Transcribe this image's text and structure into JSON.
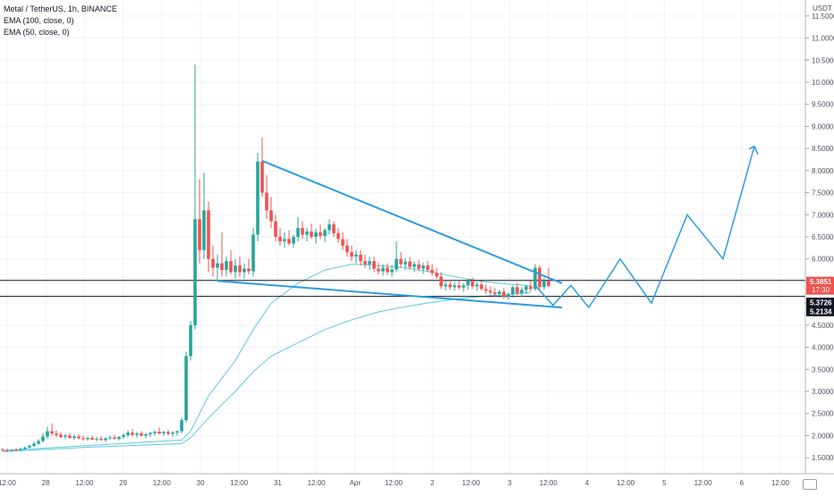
{
  "legend": {
    "symbol": "Metal / TetherUS, 1h, BINANCE",
    "ema100": "EMA (100, close, 0)",
    "ema50": "EMA (50, close, 0)"
  },
  "price_axis": {
    "currency": "USDT",
    "ticks": [
      "11.5000",
      "11.0000",
      "10.5000",
      "10.0000",
      "9.5000",
      "9.0000",
      "8.5000",
      "8.0000",
      "7.5000",
      "7.0000",
      "6.5000",
      "6.0000",
      "5.5000",
      "5.0000",
      "4.5000",
      "4.0000",
      "3.5000",
      "3.0000",
      "2.5000",
      "2.0000",
      "1.5000"
    ],
    "tick_values": [
      11.5,
      11.0,
      10.5,
      10.0,
      9.5,
      9.0,
      8.5,
      8.0,
      7.5,
      7.0,
      6.5,
      6.0,
      5.5,
      5.0,
      4.5,
      4.0,
      3.5,
      3.0,
      2.5,
      2.0,
      1.5
    ],
    "current_price": "5.3851",
    "countdown": "17:30",
    "level_1": "5.3726",
    "level_2": "5.2134"
  },
  "time_axis": {
    "labels": [
      "12:00",
      "28",
      "12:00",
      "29",
      "12:00",
      "30",
      "12:00",
      "31",
      "12:00",
      "Apr",
      "12:00",
      "2",
      "12:00",
      "3",
      "12:00",
      "4",
      "12:00",
      "5",
      "12:00",
      "6",
      "12:00"
    ]
  },
  "colors": {
    "up": "#26a69a",
    "down": "#ef5350",
    "ema": "#5ec8e0",
    "pattern": "#2e9be0",
    "level_line": "#131722"
  },
  "chart_data": {
    "type": "candlestick",
    "title": "Metal / TetherUS, 1h, BINANCE",
    "ylim": [
      1.2,
      11.8
    ],
    "y_scale": "linear",
    "candles": [
      {
        "o": 1.68,
        "h": 1.72,
        "l": 1.64,
        "c": 1.67
      },
      {
        "o": 1.67,
        "h": 1.71,
        "l": 1.63,
        "c": 1.66
      },
      {
        "o": 1.66,
        "h": 1.7,
        "l": 1.63,
        "c": 1.68
      },
      {
        "o": 1.68,
        "h": 1.72,
        "l": 1.65,
        "c": 1.67
      },
      {
        "o": 1.67,
        "h": 1.73,
        "l": 1.65,
        "c": 1.7
      },
      {
        "o": 1.7,
        "h": 1.76,
        "l": 1.68,
        "c": 1.73
      },
      {
        "o": 1.73,
        "h": 1.8,
        "l": 1.71,
        "c": 1.77
      },
      {
        "o": 1.77,
        "h": 1.86,
        "l": 1.74,
        "c": 1.82
      },
      {
        "o": 1.82,
        "h": 1.92,
        "l": 1.79,
        "c": 1.88
      },
      {
        "o": 1.88,
        "h": 2.05,
        "l": 1.84,
        "c": 1.98
      },
      {
        "o": 1.98,
        "h": 2.2,
        "l": 1.93,
        "c": 2.1
      },
      {
        "o": 2.1,
        "h": 2.28,
        "l": 2.0,
        "c": 2.05
      },
      {
        "o": 2.05,
        "h": 2.12,
        "l": 1.96,
        "c": 2.02
      },
      {
        "o": 2.02,
        "h": 2.08,
        "l": 1.94,
        "c": 1.97
      },
      {
        "o": 1.97,
        "h": 2.04,
        "l": 1.92,
        "c": 2.0
      },
      {
        "o": 2.0,
        "h": 2.06,
        "l": 1.93,
        "c": 1.95
      },
      {
        "o": 1.95,
        "h": 2.02,
        "l": 1.9,
        "c": 1.98
      },
      {
        "o": 1.98,
        "h": 2.03,
        "l": 1.92,
        "c": 1.94
      },
      {
        "o": 1.94,
        "h": 2.0,
        "l": 1.89,
        "c": 1.92
      },
      {
        "o": 1.92,
        "h": 1.98,
        "l": 1.88,
        "c": 1.95
      },
      {
        "o": 1.95,
        "h": 2.0,
        "l": 1.9,
        "c": 1.91
      },
      {
        "o": 1.91,
        "h": 1.97,
        "l": 1.87,
        "c": 1.93
      },
      {
        "o": 1.93,
        "h": 1.99,
        "l": 1.89,
        "c": 1.9
      },
      {
        "o": 1.9,
        "h": 1.96,
        "l": 1.86,
        "c": 1.94
      },
      {
        "o": 1.94,
        "h": 2.0,
        "l": 1.9,
        "c": 1.96
      },
      {
        "o": 1.96,
        "h": 2.02,
        "l": 1.91,
        "c": 1.93
      },
      {
        "o": 1.93,
        "h": 1.99,
        "l": 1.89,
        "c": 1.97
      },
      {
        "o": 1.97,
        "h": 2.05,
        "l": 1.93,
        "c": 2.01
      },
      {
        "o": 2.01,
        "h": 2.12,
        "l": 1.97,
        "c": 2.07
      },
      {
        "o": 2.07,
        "h": 2.15,
        "l": 1.98,
        "c": 2.02
      },
      {
        "o": 2.02,
        "h": 2.08,
        "l": 1.95,
        "c": 2.05
      },
      {
        "o": 2.05,
        "h": 2.1,
        "l": 1.98,
        "c": 2.0
      },
      {
        "o": 2.0,
        "h": 2.06,
        "l": 1.94,
        "c": 2.03
      },
      {
        "o": 2.03,
        "h": 2.09,
        "l": 1.97,
        "c": 2.06
      },
      {
        "o": 2.06,
        "h": 2.12,
        "l": 2.0,
        "c": 2.09
      },
      {
        "o": 2.09,
        "h": 2.18,
        "l": 2.02,
        "c": 2.05
      },
      {
        "o": 2.05,
        "h": 2.11,
        "l": 1.99,
        "c": 2.08
      },
      {
        "o": 2.08,
        "h": 2.13,
        "l": 2.01,
        "c": 2.04
      },
      {
        "o": 2.04,
        "h": 2.1,
        "l": 1.98,
        "c": 2.07
      },
      {
        "o": 2.07,
        "h": 2.12,
        "l": 2.0,
        "c": 2.1
      },
      {
        "o": 2.1,
        "h": 2.4,
        "l": 2.05,
        "c": 2.35
      },
      {
        "o": 2.35,
        "h": 3.9,
        "l": 2.3,
        "c": 3.8
      },
      {
        "o": 3.8,
        "h": 4.6,
        "l": 3.7,
        "c": 4.5
      },
      {
        "o": 4.5,
        "h": 10.4,
        "l": 4.4,
        "c": 6.9
      },
      {
        "o": 6.9,
        "h": 7.8,
        "l": 5.9,
        "c": 6.2
      },
      {
        "o": 6.2,
        "h": 7.95,
        "l": 6.0,
        "c": 7.1
      },
      {
        "o": 7.1,
        "h": 7.3,
        "l": 5.7,
        "c": 6.0
      },
      {
        "o": 6.0,
        "h": 6.3,
        "l": 5.6,
        "c": 5.8
      },
      {
        "o": 5.8,
        "h": 6.1,
        "l": 5.5,
        "c": 5.9
      },
      {
        "o": 5.9,
        "h": 6.6,
        "l": 5.6,
        "c": 5.75
      },
      {
        "o": 5.75,
        "h": 6.05,
        "l": 5.6,
        "c": 5.95
      },
      {
        "o": 5.95,
        "h": 6.2,
        "l": 5.65,
        "c": 5.7
      },
      {
        "o": 5.7,
        "h": 6.0,
        "l": 5.55,
        "c": 5.85
      },
      {
        "o": 5.85,
        "h": 6.05,
        "l": 5.6,
        "c": 5.7
      },
      {
        "o": 5.7,
        "h": 5.9,
        "l": 5.55,
        "c": 5.78
      },
      {
        "o": 5.78,
        "h": 6.0,
        "l": 5.65,
        "c": 5.72
      },
      {
        "o": 5.72,
        "h": 6.7,
        "l": 5.6,
        "c": 6.55
      },
      {
        "o": 6.55,
        "h": 8.4,
        "l": 6.4,
        "c": 8.2
      },
      {
        "o": 8.2,
        "h": 8.75,
        "l": 7.4,
        "c": 7.5
      },
      {
        "o": 7.5,
        "h": 7.9,
        "l": 6.9,
        "c": 7.1
      },
      {
        "o": 7.1,
        "h": 7.4,
        "l": 6.7,
        "c": 6.85
      },
      {
        "o": 6.85,
        "h": 7.0,
        "l": 6.4,
        "c": 6.5
      },
      {
        "o": 6.5,
        "h": 6.7,
        "l": 6.3,
        "c": 6.4
      },
      {
        "o": 6.4,
        "h": 6.6,
        "l": 6.25,
        "c": 6.45
      },
      {
        "o": 6.45,
        "h": 6.65,
        "l": 6.3,
        "c": 6.35
      },
      {
        "o": 6.35,
        "h": 6.55,
        "l": 6.25,
        "c": 6.5
      },
      {
        "o": 6.5,
        "h": 6.95,
        "l": 6.4,
        "c": 6.7
      },
      {
        "o": 6.7,
        "h": 6.85,
        "l": 6.45,
        "c": 6.55
      },
      {
        "o": 6.55,
        "h": 6.7,
        "l": 6.4,
        "c": 6.62
      },
      {
        "o": 6.62,
        "h": 6.8,
        "l": 6.45,
        "c": 6.5
      },
      {
        "o": 6.5,
        "h": 6.68,
        "l": 6.35,
        "c": 6.6
      },
      {
        "o": 6.6,
        "h": 6.78,
        "l": 6.45,
        "c": 6.52
      },
      {
        "o": 6.52,
        "h": 6.7,
        "l": 6.38,
        "c": 6.65
      },
      {
        "o": 6.65,
        "h": 6.9,
        "l": 6.55,
        "c": 6.78
      },
      {
        "o": 6.78,
        "h": 6.85,
        "l": 6.5,
        "c": 6.58
      },
      {
        "o": 6.58,
        "h": 6.7,
        "l": 6.35,
        "c": 6.45
      },
      {
        "o": 6.45,
        "h": 6.6,
        "l": 6.2,
        "c": 6.3
      },
      {
        "o": 6.3,
        "h": 6.45,
        "l": 6.05,
        "c": 6.15
      },
      {
        "o": 6.15,
        "h": 6.3,
        "l": 5.95,
        "c": 6.05
      },
      {
        "o": 6.05,
        "h": 6.2,
        "l": 5.9,
        "c": 6.1
      },
      {
        "o": 6.1,
        "h": 6.2,
        "l": 5.85,
        "c": 5.95
      },
      {
        "o": 5.95,
        "h": 6.1,
        "l": 5.8,
        "c": 5.88
      },
      {
        "o": 5.88,
        "h": 6.05,
        "l": 5.75,
        "c": 5.95
      },
      {
        "o": 5.95,
        "h": 6.05,
        "l": 5.7,
        "c": 5.78
      },
      {
        "o": 5.78,
        "h": 5.92,
        "l": 5.65,
        "c": 5.72
      },
      {
        "o": 5.72,
        "h": 5.88,
        "l": 5.62,
        "c": 5.8
      },
      {
        "o": 5.8,
        "h": 5.9,
        "l": 5.64,
        "c": 5.7
      },
      {
        "o": 5.7,
        "h": 5.86,
        "l": 5.6,
        "c": 5.76
      },
      {
        "o": 5.76,
        "h": 6.4,
        "l": 5.7,
        "c": 6.0
      },
      {
        "o": 6.0,
        "h": 6.15,
        "l": 5.8,
        "c": 5.88
      },
      {
        "o": 5.88,
        "h": 6.02,
        "l": 5.75,
        "c": 5.94
      },
      {
        "o": 5.94,
        "h": 6.05,
        "l": 5.76,
        "c": 5.82
      },
      {
        "o": 5.82,
        "h": 5.95,
        "l": 5.7,
        "c": 5.88
      },
      {
        "o": 5.88,
        "h": 5.98,
        "l": 5.72,
        "c": 5.78
      },
      {
        "o": 5.78,
        "h": 5.92,
        "l": 5.66,
        "c": 5.85
      },
      {
        "o": 5.85,
        "h": 5.95,
        "l": 5.7,
        "c": 5.75
      },
      {
        "o": 5.75,
        "h": 5.88,
        "l": 5.62,
        "c": 5.68
      },
      {
        "o": 5.68,
        "h": 5.8,
        "l": 5.55,
        "c": 5.6
      },
      {
        "o": 5.6,
        "h": 5.7,
        "l": 5.32,
        "c": 5.38
      },
      {
        "o": 5.38,
        "h": 5.5,
        "l": 5.28,
        "c": 5.42
      },
      {
        "o": 5.42,
        "h": 5.52,
        "l": 5.3,
        "c": 5.36
      },
      {
        "o": 5.36,
        "h": 5.48,
        "l": 5.28,
        "c": 5.4
      },
      {
        "o": 5.4,
        "h": 5.5,
        "l": 5.3,
        "c": 5.35
      },
      {
        "o": 5.35,
        "h": 5.46,
        "l": 5.26,
        "c": 5.4
      },
      {
        "o": 5.4,
        "h": 5.55,
        "l": 5.3,
        "c": 5.5
      },
      {
        "o": 5.5,
        "h": 5.58,
        "l": 5.32,
        "c": 5.38
      },
      {
        "o": 5.38,
        "h": 5.48,
        "l": 5.28,
        "c": 5.42
      },
      {
        "o": 5.42,
        "h": 5.5,
        "l": 5.28,
        "c": 5.32
      },
      {
        "o": 5.32,
        "h": 5.42,
        "l": 5.2,
        "c": 5.28
      },
      {
        "o": 5.28,
        "h": 5.38,
        "l": 5.18,
        "c": 5.24
      },
      {
        "o": 5.24,
        "h": 5.34,
        "l": 5.15,
        "c": 5.2
      },
      {
        "o": 5.2,
        "h": 5.3,
        "l": 5.12,
        "c": 5.26
      },
      {
        "o": 5.26,
        "h": 5.34,
        "l": 5.1,
        "c": 5.14
      },
      {
        "o": 5.14,
        "h": 5.24,
        "l": 5.08,
        "c": 5.2
      },
      {
        "o": 5.2,
        "h": 5.4,
        "l": 5.12,
        "c": 5.36
      },
      {
        "o": 5.36,
        "h": 5.46,
        "l": 5.18,
        "c": 5.22
      },
      {
        "o": 5.22,
        "h": 5.36,
        "l": 5.14,
        "c": 5.3
      },
      {
        "o": 5.3,
        "h": 5.42,
        "l": 5.2,
        "c": 5.38
      },
      {
        "o": 5.38,
        "h": 5.5,
        "l": 5.26,
        "c": 5.32
      },
      {
        "o": 5.32,
        "h": 5.88,
        "l": 5.28,
        "c": 5.8
      },
      {
        "o": 5.8,
        "h": 5.86,
        "l": 5.26,
        "c": 5.36
      },
      {
        "o": 5.36,
        "h": 5.58,
        "l": 5.3,
        "c": 5.5
      },
      {
        "o": 5.5,
        "h": 5.8,
        "l": 5.36,
        "c": 5.39
      }
    ],
    "ema100": [
      {
        "i": 0,
        "v": 1.64
      },
      {
        "i": 20,
        "v": 1.74
      },
      {
        "i": 40,
        "v": 1.82
      },
      {
        "i": 42,
        "v": 1.95
      },
      {
        "i": 46,
        "v": 2.4
      },
      {
        "i": 52,
        "v": 3.0
      },
      {
        "i": 56,
        "v": 3.45
      },
      {
        "i": 60,
        "v": 3.8
      },
      {
        "i": 66,
        "v": 4.1
      },
      {
        "i": 72,
        "v": 4.4
      },
      {
        "i": 78,
        "v": 4.62
      },
      {
        "i": 84,
        "v": 4.8
      },
      {
        "i": 90,
        "v": 4.92
      },
      {
        "i": 96,
        "v": 5.02
      },
      {
        "i": 102,
        "v": 5.1
      },
      {
        "i": 108,
        "v": 5.16
      },
      {
        "i": 114,
        "v": 5.2
      },
      {
        "i": 118,
        "v": 5.24
      }
    ],
    "ema50": [
      {
        "i": 0,
        "v": 1.66
      },
      {
        "i": 20,
        "v": 1.78
      },
      {
        "i": 40,
        "v": 1.9
      },
      {
        "i": 42,
        "v": 2.1
      },
      {
        "i": 46,
        "v": 2.9
      },
      {
        "i": 52,
        "v": 3.7
      },
      {
        "i": 56,
        "v": 4.4
      },
      {
        "i": 60,
        "v": 5.0
      },
      {
        "i": 66,
        "v": 5.45
      },
      {
        "i": 72,
        "v": 5.75
      },
      {
        "i": 78,
        "v": 5.88
      },
      {
        "i": 84,
        "v": 5.85
      },
      {
        "i": 90,
        "v": 5.8
      },
      {
        "i": 96,
        "v": 5.7
      },
      {
        "i": 102,
        "v": 5.58
      },
      {
        "i": 108,
        "v": 5.48
      },
      {
        "i": 114,
        "v": 5.42
      },
      {
        "i": 118,
        "v": 5.4
      }
    ],
    "horizontal_levels": [
      5.3726,
      5.2134
    ],
    "pattern": {
      "upper_trendline": [
        {
          "i": 58,
          "v": 8.22
        },
        {
          "i": 125,
          "v": 5.45
        }
      ],
      "lower_trendline": [
        {
          "i": 48,
          "v": 5.5
        },
        {
          "i": 125,
          "v": 4.9
        }
      ],
      "projection_path": [
        {
          "i": 119,
          "v": 5.4
        },
        {
          "i": 123,
          "v": 4.95
        },
        {
          "i": 127,
          "v": 5.4
        },
        {
          "i": 131,
          "v": 4.9
        },
        {
          "i": 138,
          "v": 6.0
        },
        {
          "i": 145,
          "v": 5.0
        },
        {
          "i": 153,
          "v": 7.0
        },
        {
          "i": 161,
          "v": 6.0
        },
        {
          "i": 168,
          "v": 8.55
        }
      ],
      "arrow_end": {
        "i": 170,
        "v": 8.3
      }
    }
  }
}
